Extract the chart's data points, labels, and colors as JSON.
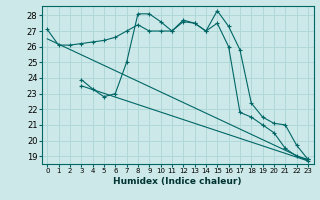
{
  "xlabel": "Humidex (Indice chaleur)",
  "bg_color": "#cde8e8",
  "line_color": "#006666",
  "grid_color": "#b0d8d8",
  "xlim": [
    -0.5,
    23.5
  ],
  "ylim": [
    18.5,
    28.6
  ],
  "xticks": [
    0,
    1,
    2,
    3,
    4,
    5,
    6,
    7,
    8,
    9,
    10,
    11,
    12,
    13,
    14,
    15,
    16,
    17,
    18,
    19,
    20,
    21,
    22,
    23
  ],
  "yticks": [
    19,
    20,
    21,
    22,
    23,
    24,
    25,
    26,
    27,
    28
  ],
  "series": [
    {
      "x": [
        0,
        1,
        2,
        3,
        4,
        5,
        6,
        7,
        8,
        9,
        10,
        11,
        12,
        13,
        14,
        15,
        16,
        17,
        18,
        19,
        20,
        21,
        22,
        23
      ],
      "y": [
        27.1,
        26.1,
        26.1,
        26.2,
        26.3,
        26.4,
        26.6,
        27.0,
        27.4,
        27.0,
        27.0,
        27.0,
        27.6,
        27.5,
        27.0,
        27.5,
        26.0,
        21.8,
        21.5,
        21.0,
        20.5,
        19.5,
        19.0,
        18.8
      ],
      "marker": "+"
    },
    {
      "x": [
        0,
        23
      ],
      "y": [
        26.5,
        18.7
      ],
      "marker": null
    },
    {
      "x": [
        3,
        23
      ],
      "y": [
        23.5,
        18.7
      ],
      "marker": "+"
    },
    {
      "x": [
        3,
        4,
        5,
        6,
        7,
        8,
        9,
        10,
        11,
        12,
        13,
        14,
        15,
        16,
        17,
        18,
        19,
        20,
        21,
        22,
        23
      ],
      "y": [
        23.9,
        23.3,
        22.8,
        23.0,
        25.0,
        28.1,
        28.1,
        27.6,
        27.0,
        27.7,
        27.5,
        27.0,
        28.3,
        27.3,
        25.8,
        22.4,
        21.5,
        21.1,
        21.0,
        19.7,
        18.8
      ],
      "marker": "+"
    }
  ]
}
